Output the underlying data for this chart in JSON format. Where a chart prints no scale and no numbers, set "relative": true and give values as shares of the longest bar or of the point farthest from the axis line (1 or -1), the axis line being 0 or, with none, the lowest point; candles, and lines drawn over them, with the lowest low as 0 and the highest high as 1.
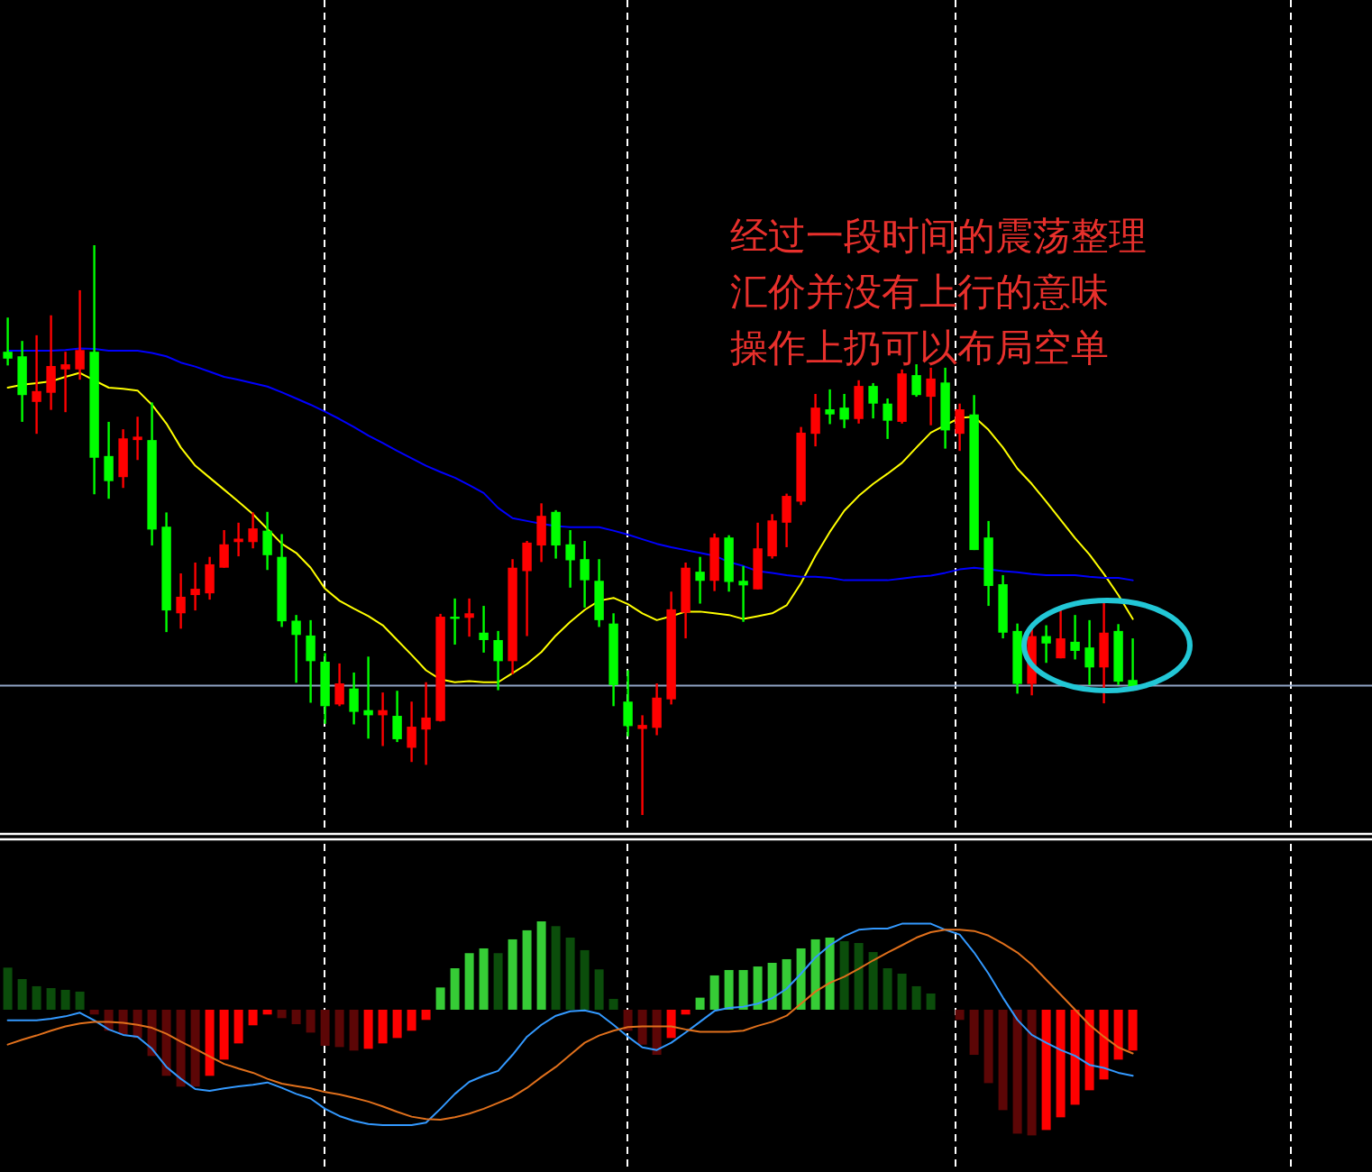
{
  "chart_data": [
    {
      "type": "candlestick",
      "relative": true,
      "categories": [
        null,
        null,
        null,
        null,
        null,
        null,
        null,
        null,
        null,
        null,
        null,
        null,
        null,
        null,
        null,
        null,
        null,
        null,
        null,
        null,
        null,
        null,
        null,
        null,
        null,
        null,
        null,
        null,
        null,
        null,
        null,
        null,
        null,
        null,
        null,
        null,
        null,
        null,
        null,
        null,
        null,
        null,
        null,
        null,
        null,
        null,
        null,
        null,
        null,
        null,
        null,
        null,
        null,
        null,
        null,
        null,
        null,
        null,
        null,
        null,
        null,
        null,
        null,
        null,
        null,
        null,
        null,
        null,
        null,
        null,
        null,
        null,
        null,
        null,
        null,
        null,
        null,
        null,
        null
      ],
      "colors": [
        "#00ff00",
        "#00ff00",
        "#ff0000",
        "#ff0000",
        "#ff0000",
        "#ff0000",
        "#00ff00",
        "#00ff00",
        "#ff0000",
        "#ff0000",
        "#00ff00",
        "#00ff00",
        "#ff0000",
        "#ff0000",
        "#ff0000",
        "#ff0000",
        "#ff0000",
        "#ff0000",
        "#00ff00",
        "#00ff00",
        "#00ff00",
        "#00ff00",
        "#00ff00",
        "#ff0000",
        "#00ff00",
        "#00ff00",
        "#ff0000",
        "#00ff00",
        "#ff0000",
        "#ff0000",
        "#ff0000",
        "#00ff00",
        "#ff0000",
        "#00ff00",
        "#00ff00",
        "#ff0000",
        "#ff0000",
        "#ff0000",
        "#00ff00",
        "#00ff00",
        "#00ff00",
        "#00ff00",
        "#00ff00",
        "#00ff00",
        "#ff0000",
        "#ff0000",
        "#ff0000",
        "#ff0000",
        "#00ff00",
        "#ff0000",
        "#00ff00",
        "#00ff00",
        "#ff0000",
        "#ff0000",
        "#ff0000",
        "#ff0000",
        "#ff0000",
        "#00ff00",
        "#00ff00",
        "#ff0000",
        "#00ff00",
        "#00ff00",
        "#ff0000",
        "#00ff00",
        "#ff0000",
        "#00ff00",
        "#ff0000",
        "#00ff00",
        "#00ff00",
        "#00ff00",
        "#00ff00",
        "#ff0000",
        "#00ff00",
        "#ff0000",
        "#00ff00",
        "#00ff00",
        "#ff0000",
        "#00ff00",
        "#00ff00"
      ],
      "ohlc": [
        [
          0.813,
          0.873,
          0.789,
          0.801
        ],
        [
          0.805,
          0.832,
          0.69,
          0.737
        ],
        [
          0.725,
          0.842,
          0.669,
          0.744
        ],
        [
          0.741,
          0.877,
          0.711,
          0.788
        ],
        [
          0.782,
          0.813,
          0.707,
          0.791
        ],
        [
          0.782,
          0.921,
          0.764,
          0.816
        ],
        [
          0.813,
          1.0,
          0.563,
          0.627
        ],
        [
          0.63,
          0.69,
          0.555,
          0.586
        ],
        [
          0.593,
          0.677,
          0.574,
          0.661
        ],
        [
          0.658,
          0.699,
          0.623,
          0.664
        ],
        [
          0.658,
          0.724,
          0.473,
          0.501
        ],
        [
          0.506,
          0.531,
          0.321,
          0.359
        ],
        [
          0.354,
          0.424,
          0.327,
          0.383
        ],
        [
          0.386,
          0.443,
          0.359,
          0.397
        ],
        [
          0.389,
          0.453,
          0.378,
          0.44
        ],
        [
          0.434,
          0.5,
          0.434,
          0.475
        ],
        [
          0.479,
          0.513,
          0.454,
          0.485
        ],
        [
          0.479,
          0.531,
          0.468,
          0.503
        ],
        [
          0.499,
          0.532,
          0.43,
          0.456
        ],
        [
          0.453,
          0.493,
          0.33,
          0.34
        ],
        [
          0.341,
          0.351,
          0.232,
          0.316
        ],
        [
          0.315,
          0.342,
          0.197,
          0.27
        ],
        [
          0.269,
          0.284,
          0.16,
          0.191
        ],
        [
          0.194,
          0.266,
          0.191,
          0.231
        ],
        [
          0.222,
          0.25,
          0.159,
          0.181
        ],
        [
          0.184,
          0.278,
          0.134,
          0.175
        ],
        [
          0.175,
          0.215,
          0.121,
          0.184
        ],
        [
          0.174,
          0.218,
          0.128,
          0.133
        ],
        [
          0.118,
          0.199,
          0.093,
          0.155
        ],
        [
          0.15,
          0.233,
          0.088,
          0.171
        ],
        [
          0.165,
          0.353,
          0.164,
          0.348
        ],
        [
          0.348,
          0.38,
          0.299,
          0.346
        ],
        [
          0.346,
          0.38,
          0.313,
          0.354
        ],
        [
          0.32,
          0.367,
          0.285,
          0.307
        ],
        [
          0.307,
          0.323,
          0.219,
          0.27
        ],
        [
          0.27,
          0.449,
          0.247,
          0.434
        ],
        [
          0.428,
          0.481,
          0.314,
          0.478
        ],
        [
          0.473,
          0.547,
          0.444,
          0.525
        ],
        [
          0.532,
          0.535,
          0.45,
          0.473
        ],
        [
          0.475,
          0.5,
          0.399,
          0.447
        ],
        [
          0.449,
          0.481,
          0.364,
          0.412
        ],
        [
          0.411,
          0.449,
          0.33,
          0.342
        ],
        [
          0.336,
          0.354,
          0.191,
          0.228
        ],
        [
          0.199,
          0.254,
          0.138,
          0.156
        ],
        [
          0.151,
          0.175,
          0.0,
          0.158
        ],
        [
          0.153,
          0.231,
          0.14,
          0.206
        ],
        [
          0.203,
          0.392,
          0.194,
          0.361
        ],
        [
          0.355,
          0.443,
          0.31,
          0.434
        ],
        [
          0.427,
          0.453,
          0.371,
          0.411
        ],
        [
          0.411,
          0.494,
          0.393,
          0.487
        ],
        [
          0.487,
          0.491,
          0.392,
          0.409
        ],
        [
          0.411,
          0.437,
          0.339,
          0.403
        ],
        [
          0.396,
          0.513,
          0.396,
          0.468
        ],
        [
          0.454,
          0.528,
          0.45,
          0.517
        ],
        [
          0.513,
          0.564,
          0.47,
          0.56
        ],
        [
          0.55,
          0.681,
          0.544,
          0.671
        ],
        [
          0.669,
          0.739,
          0.647,
          0.715
        ],
        [
          0.712,
          0.747,
          0.686,
          0.703
        ],
        [
          0.715,
          0.739,
          0.679,
          0.694
        ],
        [
          0.695,
          0.763,
          0.687,
          0.753
        ],
        [
          0.753,
          0.758,
          0.696,
          0.722
        ],
        [
          0.722,
          0.731,
          0.66,
          0.692
        ],
        [
          0.69,
          0.782,
          0.687,
          0.775
        ],
        [
          0.772,
          0.791,
          0.734,
          0.737
        ],
        [
          0.734,
          0.785,
          0.684,
          0.766
        ],
        [
          0.759,
          0.785,
          0.643,
          0.675
        ],
        [
          0.669,
          0.722,
          0.639,
          0.712
        ],
        [
          0.703,
          0.737,
          0.465,
          0.465
        ],
        [
          0.487,
          0.516,
          0.367,
          0.402
        ],
        [
          0.405,
          0.421,
          0.31,
          0.32
        ],
        [
          0.323,
          0.336,
          0.213,
          0.23
        ],
        [
          0.23,
          0.328,
          0.21,
          0.314
        ],
        [
          0.314,
          0.333,
          0.267,
          0.301
        ],
        [
          0.275,
          0.364,
          0.275,
          0.31
        ],
        [
          0.304,
          0.351,
          0.273,
          0.288
        ],
        [
          0.294,
          0.342,
          0.228,
          0.259
        ],
        [
          0.259,
          0.377,
          0.196,
          0.32
        ],
        [
          0.323,
          0.335,
          0.228,
          0.234
        ],
        [
          0.237,
          0.31,
          0.218,
          0.225
        ]
      ],
      "series": [
        {
          "type": "line",
          "color": "#ffff00",
          "values": [
            0.75,
            0.755,
            0.758,
            0.761,
            0.769,
            0.776,
            0.763,
            0.75,
            0.748,
            0.745,
            0.72,
            0.687,
            0.645,
            0.613,
            0.592,
            0.571,
            0.55,
            0.528,
            0.502,
            0.476,
            0.46,
            0.434,
            0.397,
            0.376,
            0.362,
            0.349,
            0.333,
            0.307,
            0.281,
            0.254,
            0.238,
            0.233,
            0.235,
            0.233,
            0.233,
            0.249,
            0.265,
            0.286,
            0.315,
            0.339,
            0.36,
            0.376,
            0.381,
            0.37,
            0.354,
            0.342,
            0.349,
            0.357,
            0.357,
            0.354,
            0.351,
            0.344,
            0.349,
            0.354,
            0.368,
            0.407,
            0.455,
            0.497,
            0.534,
            0.56,
            0.581,
            0.599,
            0.618,
            0.645,
            0.671,
            0.684,
            0.697,
            0.699,
            0.676,
            0.645,
            0.608,
            0.581,
            0.55,
            0.518,
            0.486,
            0.457,
            0.423,
            0.386,
            0.344
          ]
        },
        {
          "type": "line",
          "color": "#0000ff",
          "values": [
            0.815,
            0.815,
            0.815,
            0.815,
            0.816,
            0.819,
            0.818,
            0.815,
            0.815,
            0.815,
            0.811,
            0.805,
            0.794,
            0.787,
            0.778,
            0.769,
            0.764,
            0.758,
            0.752,
            0.742,
            0.731,
            0.72,
            0.708,
            0.695,
            0.681,
            0.666,
            0.653,
            0.639,
            0.626,
            0.613,
            0.602,
            0.592,
            0.579,
            0.565,
            0.539,
            0.521,
            0.516,
            0.511,
            0.507,
            0.505,
            0.505,
            0.505,
            0.499,
            0.492,
            0.484,
            0.476,
            0.47,
            0.465,
            0.46,
            0.455,
            0.444,
            0.437,
            0.428,
            0.425,
            0.421,
            0.418,
            0.418,
            0.416,
            0.412,
            0.412,
            0.412,
            0.412,
            0.415,
            0.418,
            0.42,
            0.425,
            0.431,
            0.434,
            0.431,
            0.428,
            0.426,
            0.423,
            0.421,
            0.421,
            0.421,
            0.418,
            0.416,
            0.416,
            0.412
          ]
        }
      ],
      "ref_lines": [
        {
          "axis": "y",
          "value": 0.227,
          "color": "#8fa3c4"
        }
      ],
      "annotations": [
        "经过一段时间的震荡整理",
        "汇价并没有上行的意味",
        "操作上扔可以布局空单"
      ]
    },
    {
      "type": "bar",
      "relative": true,
      "categories": [
        null,
        null,
        null,
        null,
        null,
        null,
        null,
        null,
        null,
        null,
        null,
        null,
        null,
        null,
        null,
        null,
        null,
        null,
        null,
        null,
        null,
        null,
        null,
        null,
        null,
        null,
        null,
        null,
        null,
        null,
        null,
        null,
        null,
        null,
        null,
        null,
        null,
        null,
        null,
        null,
        null,
        null,
        null,
        null,
        null,
        null,
        null,
        null,
        null,
        null,
        null,
        null,
        null,
        null,
        null,
        null,
        null,
        null,
        null,
        null,
        null,
        null,
        null,
        null,
        null,
        null,
        null,
        null,
        null,
        null,
        null,
        null,
        null,
        null,
        null,
        null,
        null,
        null,
        null
      ],
      "series": [
        {
          "type": "bar",
          "values": [
            0.335,
            0.244,
            0.187,
            0.172,
            0.158,
            0.144,
            -0.038,
            -0.167,
            -0.196,
            -0.225,
            -0.368,
            -0.526,
            -0.612,
            -0.612,
            -0.526,
            -0.397,
            -0.268,
            -0.124,
            -0.038,
            -0.067,
            -0.115,
            -0.182,
            -0.287,
            -0.297,
            -0.325,
            -0.311,
            -0.268,
            -0.225,
            -0.167,
            -0.081,
            0.177,
            0.33,
            0.45,
            0.488,
            0.45,
            0.56,
            0.632,
            0.703,
            0.665,
            0.574,
            0.474,
            0.321,
            0.086,
            -0.167,
            -0.278,
            -0.359,
            -0.225,
            -0.038,
            0.096,
            0.273,
            0.316,
            0.316,
            0.344,
            0.373,
            0.402,
            0.488,
            0.56,
            0.574,
            0.545,
            0.531,
            0.459,
            0.33,
            0.287,
            0.187,
            0.129,
            0,
            -0.081,
            -0.359,
            -0.584,
            -0.799,
            -0.986,
            -1,
            -0.957,
            -0.856,
            -0.756,
            -0.641,
            -0.555,
            -0.397,
            -0.325
          ],
          "colors": [
            "#0b4d0b",
            "#0b4d0b",
            "#0b4d0b",
            "#0b4d0b",
            "#0b4d0b",
            "#0b4d0b",
            "#5c0606",
            "#5c0606",
            "#5c0606",
            "#5c0606",
            "#5c0606",
            "#5c0606",
            "#5c0606",
            "#5c0606",
            "#ff0000",
            "#ff0000",
            "#ff0000",
            "#ff0000",
            "#ff0000",
            "#5c0606",
            "#5c0606",
            "#5c0606",
            "#5c0606",
            "#5c0606",
            "#5c0606",
            "#ff0000",
            "#ff0000",
            "#ff0000",
            "#ff0000",
            "#ff0000",
            "#36cc36",
            "#36cc36",
            "#36cc36",
            "#36cc36",
            "#0b4d0b",
            "#36cc36",
            "#36cc36",
            "#36cc36",
            "#0b4d0b",
            "#0b4d0b",
            "#0b4d0b",
            "#0b4d0b",
            "#0b4d0b",
            "#5c0606",
            "#5c0606",
            "#5c0606",
            "#ff0000",
            "#ff0000",
            "#36cc36",
            "#36cc36",
            "#36cc36",
            "#36cc36",
            "#36cc36",
            "#36cc36",
            "#36cc36",
            "#36cc36",
            "#36cc36",
            "#36cc36",
            "#0b4d0b",
            "#0b4d0b",
            "#0b4d0b",
            "#0b4d0b",
            "#0b4d0b",
            "#0b4d0b",
            "#0b4d0b",
            "#0b4d0b",
            "#5c0606",
            "#5c0606",
            "#5c0606",
            "#5c0606",
            "#5c0606",
            "#5c0606",
            "#ff0000",
            "#ff0000",
            "#ff0000",
            "#ff0000",
            "#ff0000",
            "#ff0000",
            "#ff0000"
          ]
        }
      ]
    },
    {
      "type": "line",
      "relative": true,
      "categories": [
        null,
        null,
        null,
        null,
        null,
        null,
        null,
        null,
        null,
        null,
        null,
        null,
        null,
        null,
        null,
        null,
        null,
        null,
        null,
        null,
        null,
        null,
        null,
        null,
        null,
        null,
        null,
        null,
        null,
        null,
        null,
        null,
        null,
        null,
        null,
        null,
        null,
        null,
        null,
        null,
        null,
        null,
        null,
        null,
        null,
        null,
        null,
        null,
        null,
        null,
        null,
        null,
        null,
        null,
        null,
        null,
        null,
        null,
        null,
        null,
        null,
        null,
        null,
        null,
        null,
        null,
        null,
        null,
        null,
        null,
        null,
        null,
        null,
        null,
        null,
        null,
        null,
        null,
        null
      ],
      "series": [
        {
          "type": "line",
          "color": "#3399ff",
          "values": [
            0.52,
            0.52,
            0.52,
            0.528,
            0.54,
            0.558,
            0.52,
            0.475,
            0.448,
            0.439,
            0.379,
            0.289,
            0.23,
            0.179,
            0.17,
            0.182,
            0.192,
            0.2,
            0.212,
            0.185,
            0.155,
            0.132,
            0.081,
            0.045,
            0.021,
            0.006,
            0,
            0,
            0,
            0.012,
            0.081,
            0.155,
            0.215,
            0.245,
            0.269,
            0.349,
            0.439,
            0.498,
            0.543,
            0.565,
            0.57,
            0.553,
            0.498,
            0.439,
            0.386,
            0.373,
            0.409,
            0.46,
            0.513,
            0.567,
            0.582,
            0.588,
            0.603,
            0.63,
            0.677,
            0.752,
            0.833,
            0.893,
            0.938,
            0.97,
            0.976,
            0.976,
            1,
            1,
            1,
            0.97,
            0.946,
            0.857,
            0.752,
            0.633,
            0.523,
            0.448,
            0.409,
            0.373,
            0.344,
            0.299,
            0.284,
            0.26,
            0.245
          ]
        },
        {
          "type": "line",
          "color": "#e0701c",
          "values": [
            0.4,
            0.424,
            0.445,
            0.469,
            0.49,
            0.505,
            0.513,
            0.513,
            0.508,
            0.498,
            0.483,
            0.454,
            0.415,
            0.379,
            0.341,
            0.304,
            0.281,
            0.26,
            0.23,
            0.206,
            0.194,
            0.182,
            0.164,
            0.152,
            0.135,
            0.117,
            0.093,
            0.066,
            0.042,
            0.03,
            0.027,
            0.039,
            0.057,
            0.081,
            0.11,
            0.14,
            0.185,
            0.239,
            0.289,
            0.349,
            0.409,
            0.445,
            0.469,
            0.487,
            0.49,
            0.49,
            0.49,
            0.475,
            0.463,
            0.463,
            0.463,
            0.469,
            0.493,
            0.513,
            0.543,
            0.603,
            0.663,
            0.707,
            0.737,
            0.776,
            0.818,
            0.857,
            0.893,
            0.931,
            0.958,
            0.97,
            0.97,
            0.964,
            0.941,
            0.901,
            0.857,
            0.797,
            0.722,
            0.648,
            0.573,
            0.498,
            0.439,
            0.386,
            0.356
          ]
        }
      ]
    }
  ]
}
